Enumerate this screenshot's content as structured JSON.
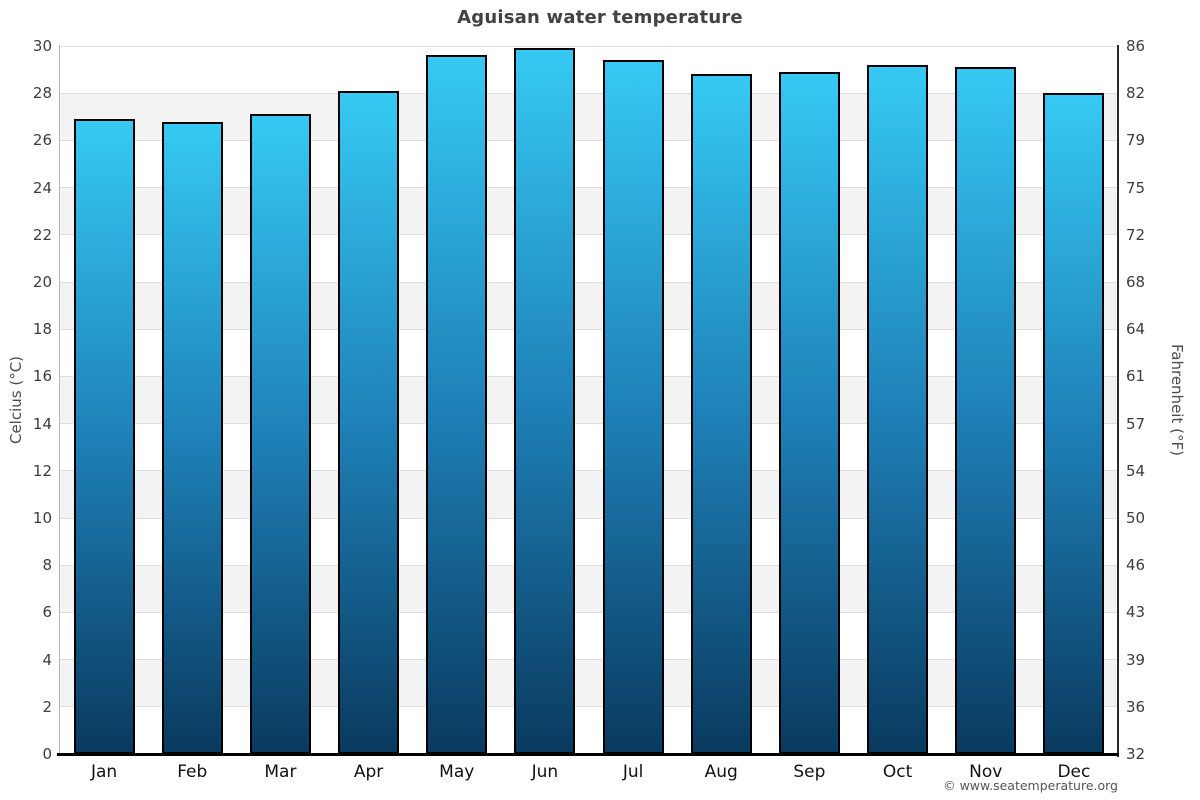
{
  "page": {
    "title": "Aguisan water temperature",
    "credit": "© www.seatemperature.org"
  },
  "chart_data": {
    "type": "bar",
    "title": "Aguisan water temperature",
    "categories": [
      "Jan",
      "Feb",
      "Mar",
      "Apr",
      "May",
      "Jun",
      "Jul",
      "Aug",
      "Sep",
      "Oct",
      "Nov",
      "Dec"
    ],
    "series": [
      {
        "name": "Water temperature",
        "unit": "°C",
        "values": [
          26.9,
          26.8,
          27.1,
          28.1,
          29.6,
          29.9,
          29.4,
          28.8,
          28.9,
          29.2,
          29.1,
          28.0
        ]
      }
    ],
    "xlabel": "",
    "ylabel_left": "Celcius (°C)",
    "ylabel_right": "Fahrenheit (°F)",
    "ylim": [
      0,
      30
    ],
    "yticks": [
      {
        "c": "30",
        "f": "86"
      },
      {
        "c": "28",
        "f": "82"
      },
      {
        "c": "26",
        "f": "79"
      },
      {
        "c": "24",
        "f": "75"
      },
      {
        "c": "22",
        "f": "72"
      },
      {
        "c": "20",
        "f": "68"
      },
      {
        "c": "18",
        "f": "64"
      },
      {
        "c": "16",
        "f": "61"
      },
      {
        "c": "14",
        "f": "57"
      },
      {
        "c": "12",
        "f": "54"
      },
      {
        "c": "10",
        "f": "50"
      },
      {
        "c": "8",
        "f": "46"
      },
      {
        "c": "6",
        "f": "43"
      },
      {
        "c": "4",
        "f": "39"
      },
      {
        "c": "2",
        "f": "36"
      },
      {
        "c": "0",
        "f": "32"
      }
    ],
    "grid": true,
    "legend": "none",
    "alternating_bands": true,
    "credit": "© www.seatemperature.org",
    "colors": {
      "bar_gradient_top": "#36c9f4",
      "bar_gradient_mid": "#1e81b8",
      "bar_gradient_bottom": "#0a3a5f",
      "bar_border": "#000000",
      "band_gray": "#f3f3f3",
      "band_white": "#ffffff",
      "gridline": "#dedede",
      "axis_left": "#b8b8b8",
      "axis_right": "#2a2a2a",
      "axis_bottom": "#000000",
      "title_color": "#424242",
      "tick_color": "#3d3d3d"
    }
  }
}
